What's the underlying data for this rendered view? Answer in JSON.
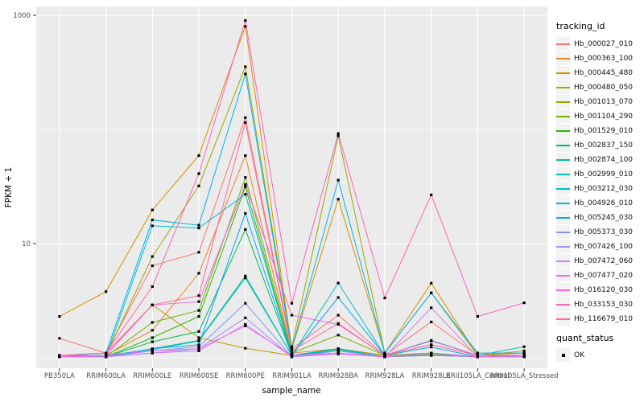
{
  "figure": {
    "background": "#FFFFFF",
    "panel_background": "#EBEBEB",
    "grid_color": "#FFFFFF",
    "tick_label_color": "#4D4D4D",
    "axis_title_color": "#000000",
    "point_color": "#000000"
  },
  "chart_data": {
    "type": "line",
    "title": "",
    "xlabel": "sample_name",
    "ylabel": "FPKM + 1",
    "y_scale": "log10",
    "y_tick_labels": [
      "10",
      "1000"
    ],
    "y_tick_values": [
      10,
      1000
    ],
    "y_gridlines_major": [
      10,
      1000
    ],
    "y_gridlines_minor": [
      1,
      100
    ],
    "y_range": [
      0.85,
      1100
    ],
    "grid": true,
    "legend_position": "right",
    "point_shape": "square",
    "categories": [
      "PB350LA",
      "RRIM600LA",
      "RRIM600LE",
      "RRIM600SE",
      "RRIM600PE",
      "RRIM901LA",
      "RRIM928BA",
      "RRIM928LA",
      "RRIM928LE",
      "RRII105LA_Control",
      "RRII105LA_Stressed"
    ],
    "series": [
      {
        "name": "Hb_000027_010",
        "color": "#F8766D",
        "values": [
          1.48,
          1.1,
          6.4,
          8.4,
          127,
          1.2,
          2.36,
          1.05,
          2.06,
          1.05,
          1.05
        ]
      },
      {
        "name": "Hb_000363_100",
        "color": "#E9842C",
        "values": [
          1.02,
          1.05,
          1.74,
          5.5,
          59,
          1.1,
          1.2,
          1.05,
          1.1,
          1.02,
          1.05
        ]
      },
      {
        "name": "Hb_000445_480",
        "color": "#D69100",
        "values": [
          2.3,
          3.8,
          19.7,
          59,
          800,
          1.2,
          24.5,
          1.1,
          4.5,
          1.05,
          1.15
        ]
      },
      {
        "name": "Hb_000480_050",
        "color": "#BC9D00",
        "values": [
          1.02,
          1.1,
          2.9,
          1.5,
          1.21,
          1.05,
          1.2,
          1.05,
          1.3,
          1.05,
          1.05
        ]
      },
      {
        "name": "Hb_001013_070",
        "color": "#9CA700",
        "values": [
          1.02,
          1.05,
          7.7,
          32,
          354,
          1.25,
          88,
          1.1,
          3.7,
          1.05,
          1.1
        ]
      },
      {
        "name": "Hb_001104_290",
        "color": "#6FB000",
        "values": [
          1.02,
          1.02,
          2.04,
          2.6,
          38,
          1.1,
          1.58,
          1.05,
          1.1,
          1.02,
          1.05
        ]
      },
      {
        "name": "Hb_001529_010",
        "color": "#2DB600",
        "values": [
          1.02,
          1.02,
          1.5,
          2.3,
          31.5,
          1.05,
          1.2,
          1.02,
          1.07,
          1.02,
          1.02
        ]
      },
      {
        "name": "Hb_002837_150",
        "color": "#00BC56",
        "values": [
          1.02,
          1.02,
          1.38,
          1.7,
          13.3,
          1.05,
          1.18,
          1.02,
          1.05,
          1.02,
          1.02
        ]
      },
      {
        "name": "Hb_002874_100",
        "color": "#00C094",
        "values": [
          1.02,
          1.02,
          1.2,
          1.42,
          5.2,
          1.05,
          1.15,
          1.02,
          1.05,
          1.02,
          1.02
        ]
      },
      {
        "name": "Hb_002999_010",
        "color": "#00C0B8",
        "values": [
          1.02,
          1.05,
          1.18,
          1.4,
          5.0,
          1.05,
          4.52,
          1.05,
          1.42,
          1.05,
          1.25
        ]
      },
      {
        "name": "Hb_003212_030",
        "color": "#00BDD2",
        "values": [
          1.02,
          1.02,
          14.3,
          13.7,
          27,
          1.05,
          1.2,
          1.02,
          1.1,
          1.02,
          1.05
        ]
      },
      {
        "name": "Hb_004926_010",
        "color": "#00B4EF",
        "values": [
          1.02,
          1.1,
          16.1,
          14.5,
          306,
          1.2,
          36,
          1.1,
          3.7,
          1.1,
          1.1
        ]
      },
      {
        "name": "Hb_005245_030",
        "color": "#00A6FF",
        "values": [
          1.02,
          1.02,
          1.2,
          1.3,
          18.4,
          1.05,
          3.37,
          1.05,
          1.24,
          1.02,
          1.02
        ]
      },
      {
        "name": "Hb_005373_030",
        "color": "#7E96FF",
        "values": [
          1.02,
          1.02,
          1.15,
          1.25,
          3.0,
          1.02,
          1.15,
          1.02,
          1.05,
          1.02,
          1.02
        ]
      },
      {
        "name": "Hb_007426_100",
        "color": "#A98CFF",
        "values": [
          1.02,
          1.02,
          1.1,
          1.2,
          2.24,
          1.02,
          1.1,
          1.02,
          1.05,
          1.02,
          1.02
        ]
      },
      {
        "name": "Hb_007472_060",
        "color": "#CE78FF",
        "values": [
          1.02,
          1.02,
          1.1,
          1.15,
          1.96,
          1.02,
          1.08,
          1.02,
          2.74,
          1.02,
          1.02
        ]
      },
      {
        "name": "Hb_007477_020",
        "color": "#E76BF3",
        "values": [
          1.02,
          1.05,
          1.15,
          1.2,
          1.9,
          1.05,
          1.1,
          1.02,
          1.1,
          1.02,
          1.02
        ]
      },
      {
        "name": "Hb_016120_030",
        "color": "#FA62DB",
        "values": [
          1.02,
          1.05,
          2.9,
          3.1,
          33,
          2.36,
          1.96,
          1.05,
          1.4,
          1.05,
          1.05
        ]
      },
      {
        "name": "Hb_033153_030",
        "color": "#FF62BC",
        "values": [
          1.05,
          1.1,
          4.2,
          41,
          900,
          3.0,
          92,
          3.34,
          26.7,
          2.3,
          3.03
        ]
      },
      {
        "name": "Hb_116679_010",
        "color": "#FF6A98",
        "values": [
          1.05,
          1.1,
          2.9,
          3.5,
          115,
          1.15,
          2.0,
          1.05,
          1.3,
          1.05,
          1.05
        ]
      }
    ],
    "legend": {
      "color_title": "tracking_id",
      "shape_title": "quant_status",
      "shape_items": [
        "OK"
      ]
    }
  }
}
